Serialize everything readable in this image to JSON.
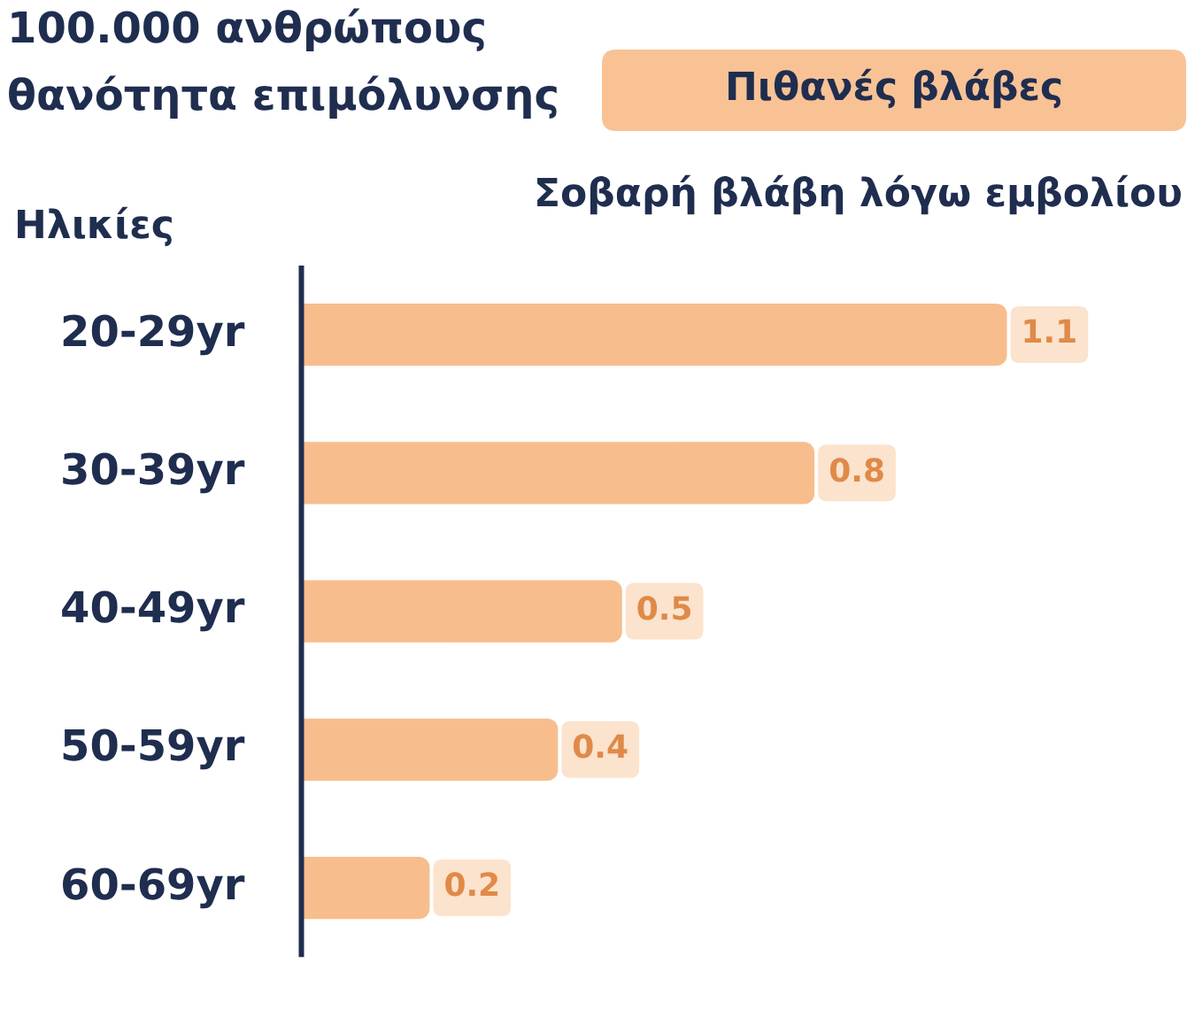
{
  "chart_data": {
    "type": "bar",
    "orientation": "horizontal",
    "title": "100.000 ανθρώπους\nθανότητα επιμόλυνσης",
    "subtitle": "Σοβαρή βλάβη λόγω εμβολίου",
    "ylabel": "Ηλικίες",
    "annotations": [
      "Πιθανές βλάβες"
    ],
    "categories": [
      "20-29yr",
      "30-39yr",
      "40-49yr",
      "50-59yr",
      "60-69yr"
    ],
    "values": [
      1.1,
      0.8,
      0.5,
      0.4,
      0.2
    ],
    "color": "#f8bd8c",
    "data_labels": true,
    "legend": false
  }
}
